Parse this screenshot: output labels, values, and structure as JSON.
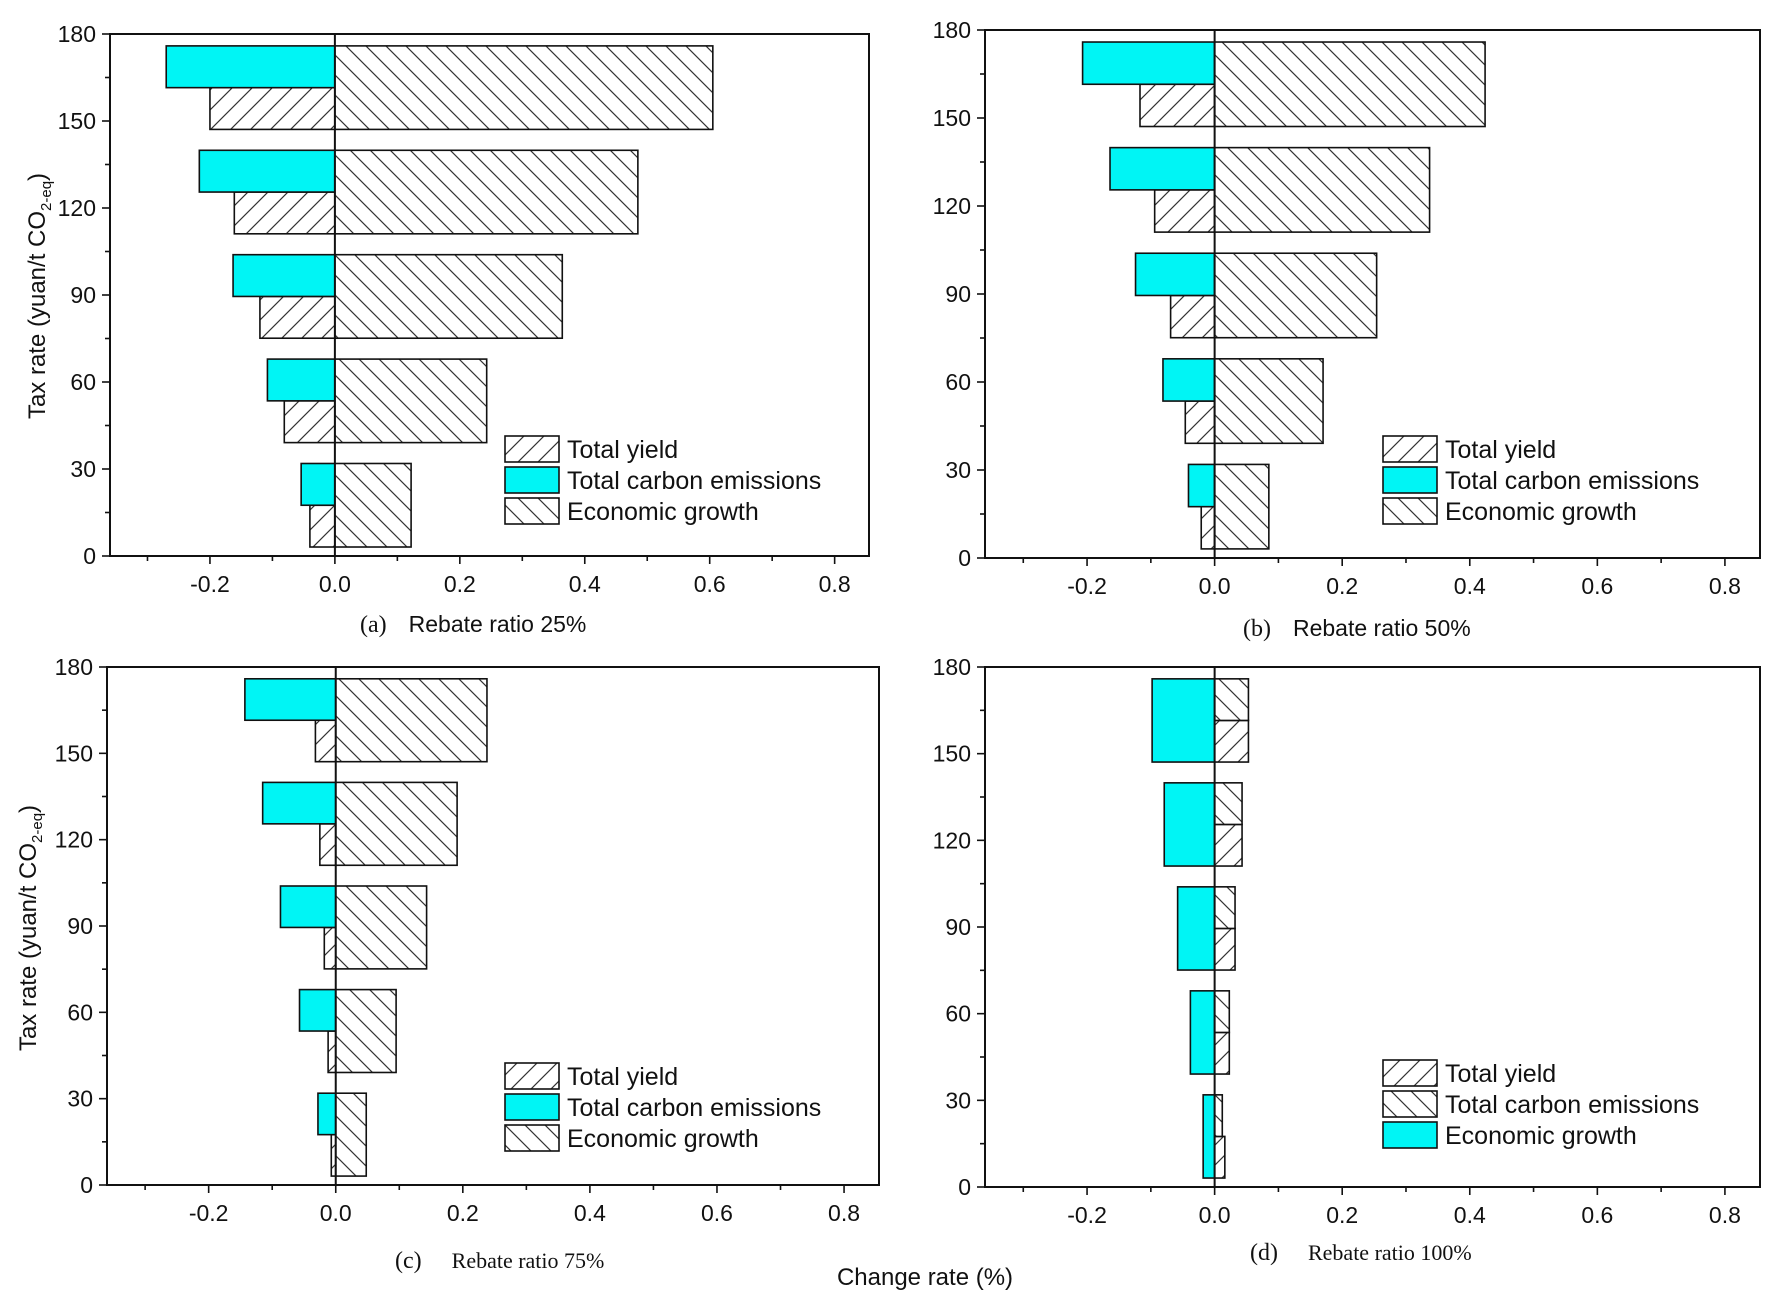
{
  "colors": {
    "cyan": "#00f5f5",
    "axis": "#111111"
  },
  "shared_xlabel": "Change rate (%)",
  "shared_ylabel": "Tax rate (yuan/t CO",
  "shared_ylabel_sub": "2-eq",
  "shared_ylabel_end": ")",
  "chart_data": [
    {
      "type": "bar",
      "panel": "(a)",
      "title": "Rebate ratio 25%",
      "xlim": [
        -0.36,
        0.855
      ],
      "ylim": [
        0,
        180
      ],
      "xticks": [
        "-0.2",
        "0.0",
        "0.2",
        "0.4",
        "0.6",
        "0.8"
      ],
      "yticks": [
        "0",
        "30",
        "60",
        "90",
        "120",
        "150",
        "180"
      ],
      "group_centers": [
        17.5,
        53.5,
        89.5,
        125.5,
        161.5
      ],
      "series": [
        {
          "name": "Total yield",
          "fill": "hatch-fwd",
          "slot": "lower",
          "values": [
            -0.04,
            -0.081,
            -0.12,
            -0.161,
            -0.2
          ]
        },
        {
          "name": "Total carbon emissions",
          "fill": "cyan",
          "slot": "upper",
          "values": [
            -0.054,
            -0.108,
            -0.163,
            -0.217,
            -0.27
          ]
        },
        {
          "name": "Economic growth",
          "fill": "hatch-back",
          "slot": "full",
          "values": [
            0.122,
            0.243,
            0.364,
            0.485,
            0.605
          ]
        }
      ]
    },
    {
      "type": "bar",
      "panel": "(b)",
      "title": "Rebate ratio 50%",
      "xlim": [
        -0.36,
        0.855
      ],
      "ylim": [
        0,
        180
      ],
      "xticks": [
        "-0.2",
        "0.0",
        "0.2",
        "0.4",
        "0.6",
        "0.8"
      ],
      "yticks": [
        "0",
        "30",
        "60",
        "90",
        "120",
        "150",
        "180"
      ],
      "group_centers": [
        17.5,
        53.5,
        89.5,
        125.5,
        161.5
      ],
      "series": [
        {
          "name": "Total yield",
          "fill": "hatch-fwd",
          "slot": "lower",
          "values": [
            -0.021,
            -0.046,
            -0.069,
            -0.094,
            -0.117
          ]
        },
        {
          "name": "Total carbon emissions",
          "fill": "cyan",
          "slot": "upper",
          "values": [
            -0.041,
            -0.081,
            -0.124,
            -0.164,
            -0.207
          ]
        },
        {
          "name": "Economic growth",
          "fill": "hatch-back",
          "slot": "full",
          "values": [
            0.085,
            0.17,
            0.254,
            0.337,
            0.424
          ]
        }
      ]
    },
    {
      "type": "bar",
      "panel": "(c)",
      "title": "Rebate ratio 75%",
      "xlim": [
        -0.36,
        0.855
      ],
      "ylim": [
        0,
        180
      ],
      "xticks": [
        "-0.2",
        "0.0",
        "0.2",
        "0.4",
        "0.6",
        "0.8"
      ],
      "yticks": [
        "0",
        "30",
        "60",
        "90",
        "120",
        "150",
        "180"
      ],
      "group_centers": [
        17.5,
        53.5,
        89.5,
        125.5,
        161.5
      ],
      "series": [
        {
          "name": "Total yield",
          "fill": "hatch-fwd",
          "slot": "lower",
          "values": [
            -0.007,
            -0.012,
            -0.018,
            -0.025,
            -0.032
          ]
        },
        {
          "name": "Total carbon emissions",
          "fill": "cyan",
          "slot": "upper",
          "values": [
            -0.028,
            -0.057,
            -0.087,
            -0.115,
            -0.143
          ]
        },
        {
          "name": "Economic growth",
          "fill": "hatch-back",
          "slot": "full",
          "values": [
            0.048,
            0.095,
            0.143,
            0.191,
            0.238
          ]
        }
      ]
    },
    {
      "type": "bar",
      "panel": "(d)",
      "title": "Rebate ratio 100%",
      "xlim": [
        -0.36,
        0.855
      ],
      "ylim": [
        0,
        180
      ],
      "xticks": [
        "-0.2",
        "0.0",
        "0.2",
        "0.4",
        "0.6",
        "0.8"
      ],
      "yticks": [
        "0",
        "30",
        "60",
        "90",
        "120",
        "150",
        "180"
      ],
      "group_centers": [
        17.5,
        53.5,
        89.5,
        125.5,
        161.5
      ],
      "series": [
        {
          "name": "Total yield",
          "fill": "hatch-fwd",
          "slot": "lower",
          "values": [
            0.016,
            0.023,
            0.032,
            0.043,
            0.053
          ]
        },
        {
          "name": "Total carbon emissions",
          "fill": "hatch-back",
          "slot": "upper",
          "values": [
            0.012,
            0.023,
            0.032,
            0.043,
            0.053
          ]
        },
        {
          "name": "Economic growth",
          "fill": "cyan",
          "slot": "full",
          "values": [
            -0.018,
            -0.038,
            -0.058,
            -0.079,
            -0.098
          ]
        }
      ]
    }
  ]
}
